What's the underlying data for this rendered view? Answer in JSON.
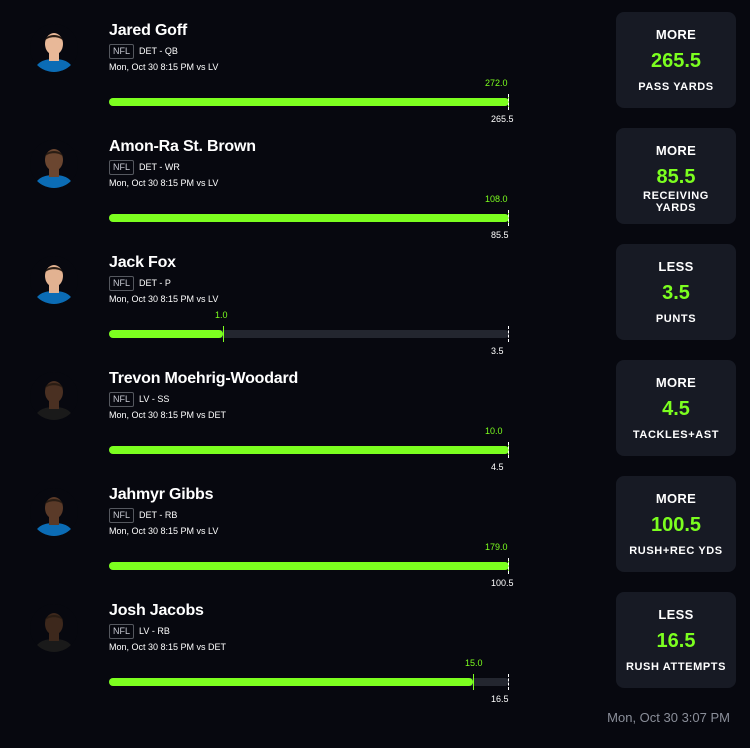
{
  "props": [
    {
      "name": "Jared Goff",
      "league": "NFL",
      "team": "DET - QB",
      "game": "Mon, Oct 30 8:15 PM  vs LV",
      "actual": "272.0",
      "line": "265.5",
      "progress": 1.0,
      "direction": "MORE",
      "value": "265.5",
      "stat": "PASS YARDS",
      "jersey": "#0b6cb5"
    },
    {
      "name": "Amon-Ra St. Brown",
      "league": "NFL",
      "team": "DET - WR",
      "game": "Mon, Oct 30 8:15 PM  vs LV",
      "actual": "108.0",
      "line": "85.5",
      "progress": 1.0,
      "direction": "MORE",
      "value": "85.5",
      "stat": "RECEIVING YARDS",
      "jersey": "#0b6cb5"
    },
    {
      "name": "Jack Fox",
      "league": "NFL",
      "team": "DET - P",
      "game": "Mon, Oct 30 8:15 PM  vs LV",
      "actual": "1.0",
      "line": "3.5",
      "progress": 0.2857,
      "direction": "LESS",
      "value": "3.5",
      "stat": "PUNTS",
      "jersey": "#0b6cb5"
    },
    {
      "name": "Trevon Moehrig-Woodard",
      "league": "NFL",
      "team": "LV - SS",
      "game": "Mon, Oct 30 8:15 PM  vs DET",
      "actual": "10.0",
      "line": "4.5",
      "progress": 1.0,
      "direction": "MORE",
      "value": "4.5",
      "stat": "TACKLES+AST",
      "jersey": "#1a1a1a"
    },
    {
      "name": "Jahmyr Gibbs",
      "league": "NFL",
      "team": "DET - RB",
      "game": "Mon, Oct 30 8:15 PM  vs LV",
      "actual": "179.0",
      "line": "100.5",
      "progress": 1.0,
      "direction": "MORE",
      "value": "100.5",
      "stat": "RUSH+REC YDS",
      "jersey": "#0b6cb5"
    },
    {
      "name": "Josh Jacobs",
      "league": "NFL",
      "team": "LV - RB",
      "game": "Mon, Oct 30 8:15 PM  vs DET",
      "actual": "15.0",
      "line": "16.5",
      "progress": 0.9091,
      "direction": "LESS",
      "value": "16.5",
      "stat": "RUSH ATTEMPTS",
      "jersey": "#1a1a1a"
    }
  ],
  "timestamp": "Mon, Oct 30 3:07 PM",
  "colors": {
    "accent": "#7cff1f",
    "background": "#07080f",
    "card": "#171a24"
  }
}
